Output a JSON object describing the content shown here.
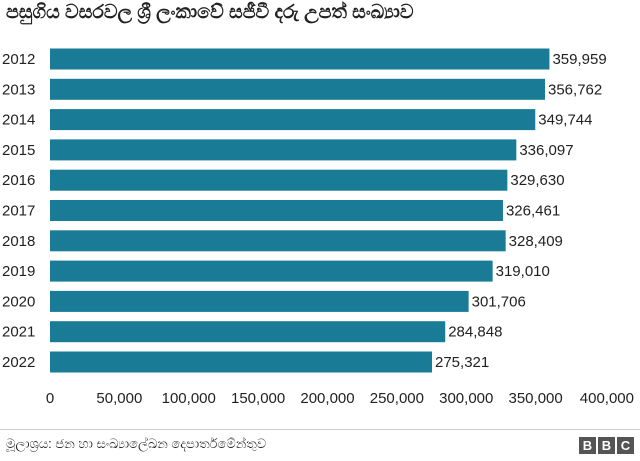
{
  "title": "පසුගිය වසරවල ශ්‍රී ලංකාවේ සජීවී දරු උපත් සංඛ්‍යාව",
  "source": "මූලාශ්‍රය: ජන හා සංඛ්‍යාලේඛන දෙපාර්තමේන්තුව",
  "logo_text": [
    "B",
    "B",
    "C"
  ],
  "colors": {
    "bar": "#1a7b96",
    "text": "#222222",
    "logo_bg": "#555555"
  },
  "chart_data": {
    "type": "bar",
    "orientation": "horizontal",
    "categories": [
      "2012",
      "2013",
      "2014",
      "2015",
      "2016",
      "2017",
      "2018",
      "2019",
      "2020",
      "2021",
      "2022"
    ],
    "values": [
      359959,
      356762,
      349744,
      336097,
      329630,
      326461,
      328409,
      319010,
      301706,
      284848,
      275321
    ],
    "value_labels": [
      "359,959",
      "356,762",
      "349,744",
      "336,097",
      "329,630",
      "326,461",
      "328,409",
      "319,010",
      "301,706",
      "284,848",
      "275,321"
    ],
    "x_ticks": [
      0,
      50000,
      100000,
      150000,
      200000,
      250000,
      300000,
      350000,
      400000
    ],
    "x_tick_labels": [
      "0",
      "50,000",
      "100,000",
      "150,000",
      "200,000",
      "250,000",
      "300,000",
      "350,000",
      "400,000"
    ],
    "xlim": [
      0,
      400000
    ],
    "grid": false,
    "legend": "none"
  }
}
